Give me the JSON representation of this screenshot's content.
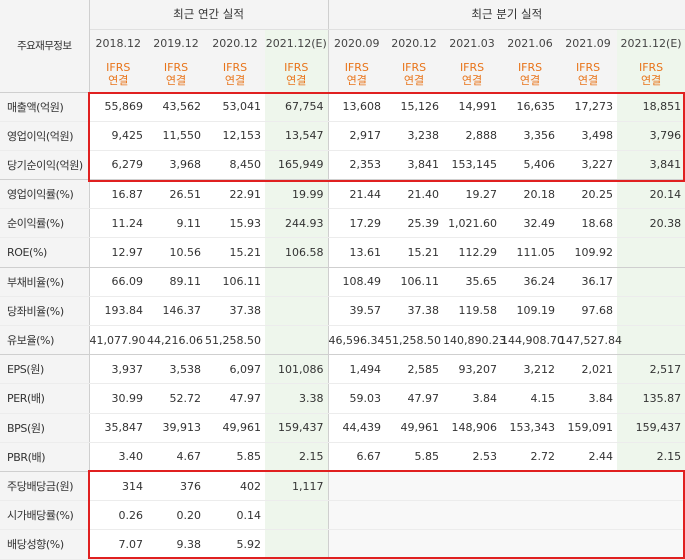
{
  "header": {
    "row_label": "주요재무정보",
    "annual_group": "최근 연간 실적",
    "quarter_group": "최근 분기 실적",
    "annual_periods": [
      "2018.12",
      "2019.12",
      "2020.12",
      "2021.12(E)"
    ],
    "quarter_periods": [
      "2020.09",
      "2020.12",
      "2021.03",
      "2021.06",
      "2021.09",
      "2021.12(E)"
    ],
    "basis_line1": "IFRS",
    "basis_line2": "연결"
  },
  "rows": [
    {
      "label": "매출액(억원)",
      "annual": [
        "55,869",
        "43,562",
        "53,041",
        "67,754"
      ],
      "quarter": [
        "13,608",
        "15,126",
        "14,991",
        "16,635",
        "17,273",
        "18,851"
      ]
    },
    {
      "label": "영업이익(억원)",
      "annual": [
        "9,425",
        "11,550",
        "12,153",
        "13,547"
      ],
      "quarter": [
        "2,917",
        "3,238",
        "2,888",
        "3,356",
        "3,498",
        "3,796"
      ]
    },
    {
      "label": "당기순이익(억원)",
      "annual": [
        "6,279",
        "3,968",
        "8,450",
        "165,949"
      ],
      "quarter": [
        "2,353",
        "3,841",
        "153,145",
        "5,406",
        "3,227",
        "3,841"
      ]
    },
    {
      "label": "영업이익률(%)",
      "annual": [
        "16.87",
        "26.51",
        "22.91",
        "19.99"
      ],
      "quarter": [
        "21.44",
        "21.40",
        "19.27",
        "20.18",
        "20.25",
        "20.14"
      ]
    },
    {
      "label": "순이익률(%)",
      "annual": [
        "11.24",
        "9.11",
        "15.93",
        "244.93"
      ],
      "quarter": [
        "17.29",
        "25.39",
        "1,021.60",
        "32.49",
        "18.68",
        "20.38"
      ]
    },
    {
      "label": "ROE(%)",
      "annual": [
        "12.97",
        "10.56",
        "15.21",
        "106.58"
      ],
      "quarter": [
        "13.61",
        "15.21",
        "112.29",
        "111.05",
        "109.92",
        ""
      ]
    },
    {
      "label": "부채비율(%)",
      "annual": [
        "66.09",
        "89.11",
        "106.11",
        ""
      ],
      "quarter": [
        "108.49",
        "106.11",
        "35.65",
        "36.24",
        "36.17",
        ""
      ]
    },
    {
      "label": "당좌비율(%)",
      "annual": [
        "193.84",
        "146.37",
        "37.38",
        ""
      ],
      "quarter": [
        "39.57",
        "37.38",
        "119.58",
        "109.19",
        "97.68",
        ""
      ]
    },
    {
      "label": "유보율(%)",
      "annual": [
        "41,077.90",
        "44,216.06",
        "51,258.50",
        ""
      ],
      "quarter": [
        "46,596.34",
        "51,258.50",
        "140,890.23",
        "144,908.70",
        "147,527.84",
        ""
      ]
    },
    {
      "label": "EPS(원)",
      "annual": [
        "3,937",
        "3,538",
        "6,097",
        "101,086"
      ],
      "quarter": [
        "1,494",
        "2,585",
        "93,207",
        "3,212",
        "2,021",
        "2,517"
      ]
    },
    {
      "label": "PER(배)",
      "annual": [
        "30.99",
        "52.72",
        "47.97",
        "3.38"
      ],
      "quarter": [
        "59.03",
        "47.97",
        "3.84",
        "4.15",
        "3.84",
        "135.87"
      ]
    },
    {
      "label": "BPS(원)",
      "annual": [
        "35,847",
        "39,913",
        "49,961",
        "159,437"
      ],
      "quarter": [
        "44,439",
        "49,961",
        "148,906",
        "153,343",
        "159,091",
        "159,437"
      ]
    },
    {
      "label": "PBR(배)",
      "annual": [
        "3.40",
        "4.67",
        "5.85",
        "2.15"
      ],
      "quarter": [
        "6.67",
        "5.85",
        "2.53",
        "2.72",
        "2.44",
        "2.15"
      ]
    },
    {
      "label": "주당배당금(원)",
      "annual": [
        "314",
        "376",
        "402",
        "1,117"
      ],
      "quarter": [
        "",
        "",
        "",
        "",
        "",
        ""
      ]
    },
    {
      "label": "시가배당률(%)",
      "annual": [
        "0.26",
        "0.20",
        "0.14",
        ""
      ],
      "quarter": [
        "",
        "",
        "",
        "",
        "",
        ""
      ]
    },
    {
      "label": "배당성향(%)",
      "annual": [
        "7.07",
        "9.38",
        "5.92",
        ""
      ],
      "quarter": [
        "",
        "",
        "",
        "",
        "",
        ""
      ]
    }
  ],
  "colors": {
    "highlight_border": "#e02020",
    "basis_text": "#e8741a",
    "estimate_bg": "#eef6ec",
    "header_bg": "#f4f4f4"
  }
}
